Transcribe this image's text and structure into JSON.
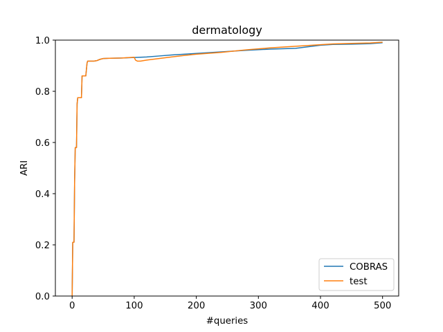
{
  "chart_data": {
    "type": "line",
    "title": "dermatology",
    "xlabel": "#queries",
    "ylabel": "ARI",
    "xlim": [
      -27,
      526
    ],
    "ylim": [
      0,
      1
    ],
    "xticks": [
      0,
      100,
      200,
      300,
      400,
      500
    ],
    "yticks": [
      0.0,
      0.2,
      0.4,
      0.6,
      0.8,
      1.0
    ],
    "xtick_labels": [
      "0",
      "100",
      "200",
      "300",
      "400",
      "500"
    ],
    "ytick_labels": [
      "0.0",
      "0.2",
      "0.4",
      "0.6",
      "0.8",
      "1.0"
    ],
    "grid": false,
    "legend_position": "lower-right",
    "series": [
      {
        "name": "COBRAS",
        "color": "#1f77b4",
        "x": [
          0,
          1,
          2,
          3,
          4,
          5,
          6,
          7,
          8,
          9,
          10,
          15,
          16,
          17,
          20,
          22,
          24,
          25,
          30,
          35,
          40,
          45,
          50,
          60,
          80,
          100,
          120,
          140,
          160,
          180,
          200,
          240,
          280,
          320,
          360,
          400,
          420,
          450,
          480,
          500
        ],
        "y": [
          0.0,
          0.21,
          0.21,
          0.21,
          0.45,
          0.58,
          0.58,
          0.58,
          0.75,
          0.775,
          0.775,
          0.775,
          0.86,
          0.86,
          0.86,
          0.86,
          0.91,
          0.918,
          0.918,
          0.918,
          0.92,
          0.925,
          0.928,
          0.929,
          0.93,
          0.932,
          0.934,
          0.938,
          0.942,
          0.945,
          0.948,
          0.954,
          0.96,
          0.965,
          0.968,
          0.98,
          0.983,
          0.984,
          0.986,
          0.99
        ]
      },
      {
        "name": "test",
        "color": "#ff7f0e",
        "x": [
          0,
          1,
          2,
          3,
          4,
          5,
          6,
          7,
          8,
          9,
          10,
          15,
          16,
          17,
          20,
          22,
          24,
          25,
          30,
          35,
          40,
          45,
          50,
          60,
          80,
          100,
          102,
          105,
          110,
          120,
          140,
          160,
          180,
          200,
          240,
          280,
          320,
          360,
          400,
          420,
          450,
          480,
          500
        ],
        "y": [
          0.0,
          0.21,
          0.21,
          0.21,
          0.45,
          0.58,
          0.58,
          0.58,
          0.75,
          0.775,
          0.775,
          0.775,
          0.86,
          0.86,
          0.86,
          0.86,
          0.91,
          0.918,
          0.918,
          0.918,
          0.92,
          0.925,
          0.928,
          0.929,
          0.93,
          0.933,
          0.922,
          0.918,
          0.918,
          0.922,
          0.928,
          0.934,
          0.94,
          0.945,
          0.952,
          0.962,
          0.97,
          0.976,
          0.982,
          0.985,
          0.987,
          0.989,
          0.992
        ]
      }
    ]
  }
}
